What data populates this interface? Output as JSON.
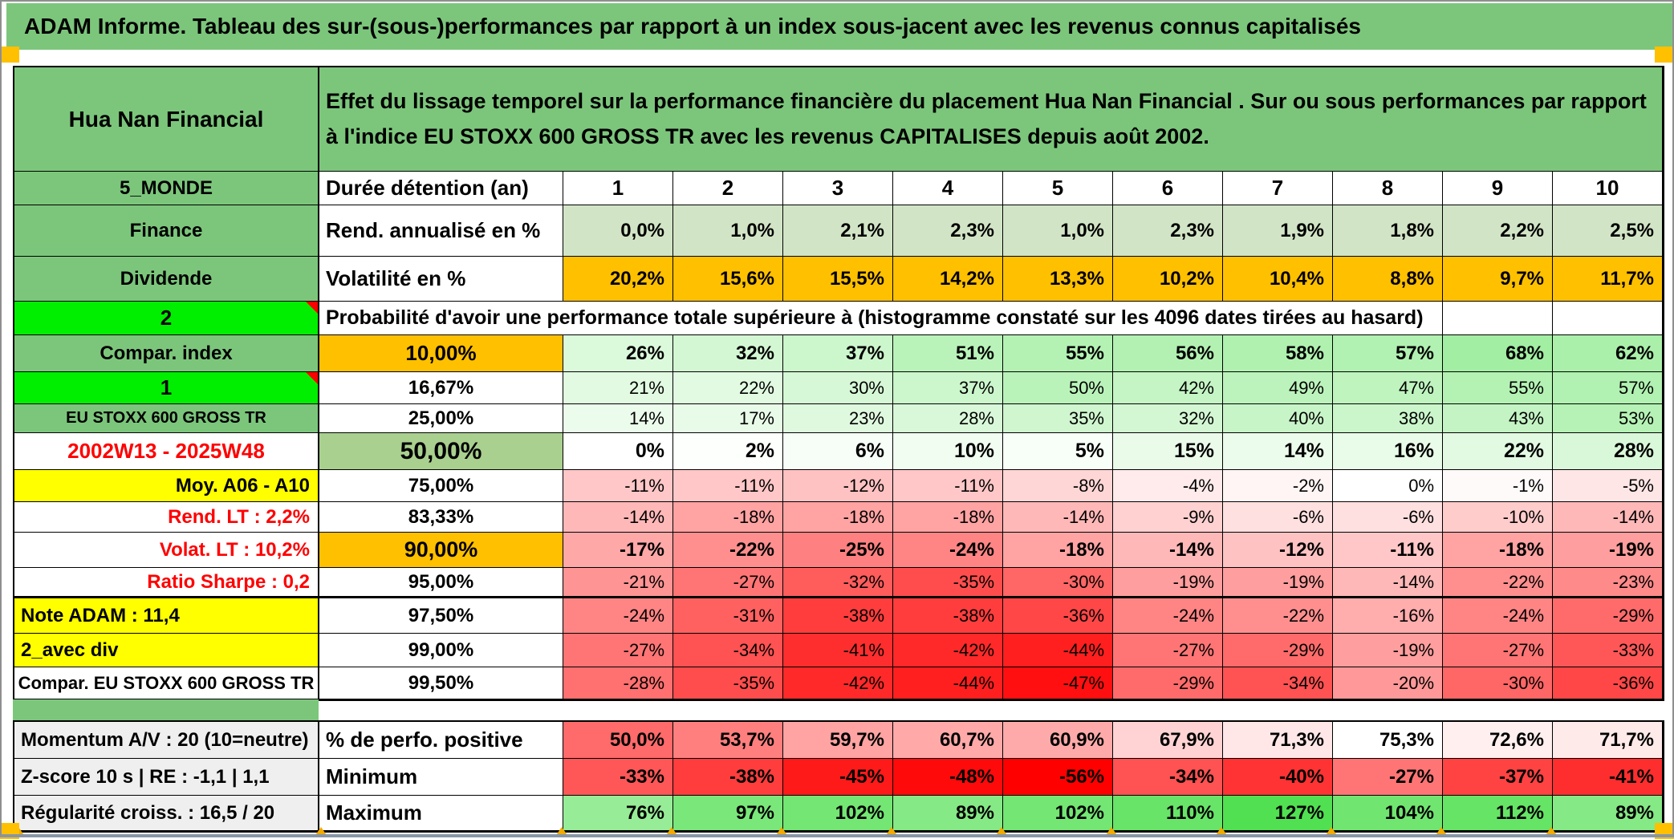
{
  "title": "ADAM Informe. Tableau des sur-(sous-)performances par rapport à un index sous-jacent avec les revenus connus capitalisés",
  "header": {
    "name": "Hua Nan Financial",
    "description": "Effet du lissage temporel sur la performance financière du placement Hua Nan Financial . Sur ou sous performances par rapport à l'indice EU STOXX 600 GROSS TR avec les revenus CAPITALISES depuis août 2002."
  },
  "colors": {
    "header_green": "#7CC67C",
    "bright_green": "#00EE00",
    "orange": "#FFC000",
    "yellow": "#FFFF00",
    "olive_green": "#A9D08E",
    "light_green_band": "#D2E4C6",
    "gray_label": "#EFEFEF",
    "red_text": "#FF0000"
  },
  "top_rows": [
    {
      "label": "5_MONDE",
      "header": "Durée détention (an)",
      "values": [
        "1",
        "2",
        "3",
        "4",
        "5",
        "6",
        "7",
        "8",
        "9",
        "10"
      ]
    },
    {
      "label": "Finance",
      "header": "Rend. annualisé en %",
      "values": [
        "0,0%",
        "1,0%",
        "2,1%",
        "2,3%",
        "1,0%",
        "2,3%",
        "1,9%",
        "1,8%",
        "2,2%",
        "2,5%"
      ]
    },
    {
      "label": "Dividende",
      "header": "Volatilité en %",
      "values": [
        "20,2%",
        "15,6%",
        "15,5%",
        "14,2%",
        "13,3%",
        "10,2%",
        "10,4%",
        "8,8%",
        "9,7%",
        "11,7%"
      ]
    }
  ],
  "banner": {
    "label": "2",
    "text": "Probabilité d'avoir une performance totale supérieure à (histogramme constaté sur les 4096 dates tirées au hasard)"
  },
  "matrix": {
    "rows": [
      {
        "label": "Compar. index",
        "threshold": "10,00%",
        "values": [
          "26%",
          "32%",
          "37%",
          "51%",
          "55%",
          "56%",
          "58%",
          "57%",
          "68%",
          "62%"
        ]
      },
      {
        "label": "1",
        "threshold": "16,67%",
        "values": [
          "21%",
          "22%",
          "30%",
          "37%",
          "50%",
          "42%",
          "49%",
          "47%",
          "55%",
          "57%"
        ]
      },
      {
        "label": "EU STOXX 600 GROSS TR",
        "threshold": "25,00%",
        "values": [
          "14%",
          "17%",
          "23%",
          "28%",
          "35%",
          "32%",
          "40%",
          "38%",
          "43%",
          "53%"
        ]
      },
      {
        "label": "2002W13 - 2025W48",
        "threshold": "50,00%",
        "values": [
          "0%",
          "2%",
          "6%",
          "10%",
          "5%",
          "15%",
          "14%",
          "16%",
          "22%",
          "28%"
        ]
      },
      {
        "label": "Moy. A06 - A10",
        "threshold": "75,00%",
        "values": [
          "-11%",
          "-11%",
          "-12%",
          "-11%",
          "-8%",
          "-4%",
          "-2%",
          "0%",
          "-1%",
          "-5%"
        ]
      },
      {
        "label": "Rend. LT :   2,2%",
        "threshold": "83,33%",
        "values": [
          "-14%",
          "-18%",
          "-18%",
          "-18%",
          "-14%",
          "-9%",
          "-6%",
          "-6%",
          "-10%",
          "-14%"
        ]
      },
      {
        "label": "Volat. LT :   10,2%",
        "threshold": "90,00%",
        "values": [
          "-17%",
          "-22%",
          "-25%",
          "-24%",
          "-18%",
          "-14%",
          "-12%",
          "-11%",
          "-18%",
          "-19%"
        ]
      },
      {
        "label": "Ratio Sharpe :   0,2",
        "threshold": "95,00%",
        "values": [
          "-21%",
          "-27%",
          "-32%",
          "-35%",
          "-30%",
          "-19%",
          "-19%",
          "-14%",
          "-22%",
          "-23%"
        ]
      },
      {
        "label": "Note ADAM : 11,4",
        "threshold": "97,50%",
        "values": [
          "-24%",
          "-31%",
          "-38%",
          "-38%",
          "-36%",
          "-24%",
          "-22%",
          "-16%",
          "-24%",
          "-29%"
        ]
      },
      {
        "label": "2_avec div",
        "threshold": "99,00%",
        "values": [
          "-27%",
          "-34%",
          "-41%",
          "-42%",
          "-44%",
          "-27%",
          "-29%",
          "-19%",
          "-27%",
          "-33%"
        ]
      },
      {
        "label": "Compar. EU STOXX 600 GROSS TR",
        "threshold": "99,50%",
        "values": [
          "-28%",
          "-35%",
          "-42%",
          "-44%",
          "-47%",
          "-29%",
          "-34%",
          "-20%",
          "-30%",
          "-36%"
        ]
      }
    ]
  },
  "bottom_rows": [
    {
      "label": "Momentum A/V : 20 (10=neutre)",
      "header": "% de perfo. positive",
      "values": [
        "50,0%",
        "53,7%",
        "59,7%",
        "60,7%",
        "60,9%",
        "67,9%",
        "71,3%",
        "75,3%",
        "72,6%",
        "71,7%"
      ]
    },
    {
      "label": "Z-score 10 s | RE : -1,1 | 1,1",
      "header": "Minimum",
      "values": [
        "-33%",
        "-38%",
        "-45%",
        "-48%",
        "-56%",
        "-34%",
        "-40%",
        "-27%",
        "-37%",
        "-41%"
      ]
    },
    {
      "label": "Régularité croiss. : 16,5 / 20",
      "header": "Maximum",
      "values": [
        "76%",
        "97%",
        "102%",
        "89%",
        "102%",
        "110%",
        "127%",
        "104%",
        "112%",
        "89%"
      ]
    }
  ]
}
